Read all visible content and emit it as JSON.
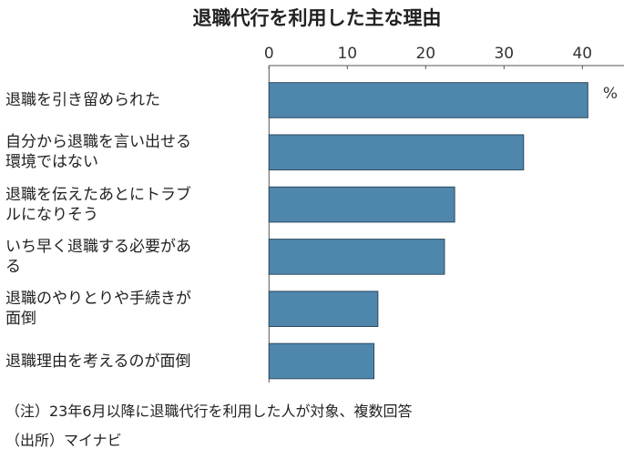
{
  "chart_data": {
    "type": "bar",
    "orientation": "horizontal",
    "title": "退職代行を利用した主な理由",
    "unit": "%",
    "categories": [
      "退職を引き留められた",
      "自分から退職を言い出せる環境ではない",
      "退職を伝えたあとにトラブルになりそう",
      "いち早く退職する必要がある",
      "退職のやりとりや手続きが面倒",
      "退職理由を考えるのが面倒"
    ],
    "category_lines": [
      [
        "退職を引き留められた"
      ],
      [
        "自分から退職を言い出せる",
        "環境ではない"
      ],
      [
        "退職を伝えたあとにトラブ",
        "ルになりそう"
      ],
      [
        "いち早く退職する必要があ",
        "る"
      ],
      [
        "退職のやりとりや手続きが",
        "面倒"
      ],
      [
        "退職理由を考えるのが面倒"
      ]
    ],
    "values": [
      40.7,
      32.5,
      23.7,
      22.4,
      13.9,
      13.4
    ],
    "xticks": [
      0,
      10,
      20,
      30,
      40
    ],
    "xlim": [
      0,
      45
    ],
    "grid": false,
    "bar_color": "#4f86ab"
  },
  "notes": {
    "note": "（注）23年6月以降に退職代行を利用した人が対象、複数回答",
    "source": "（出所）マイナビ"
  }
}
